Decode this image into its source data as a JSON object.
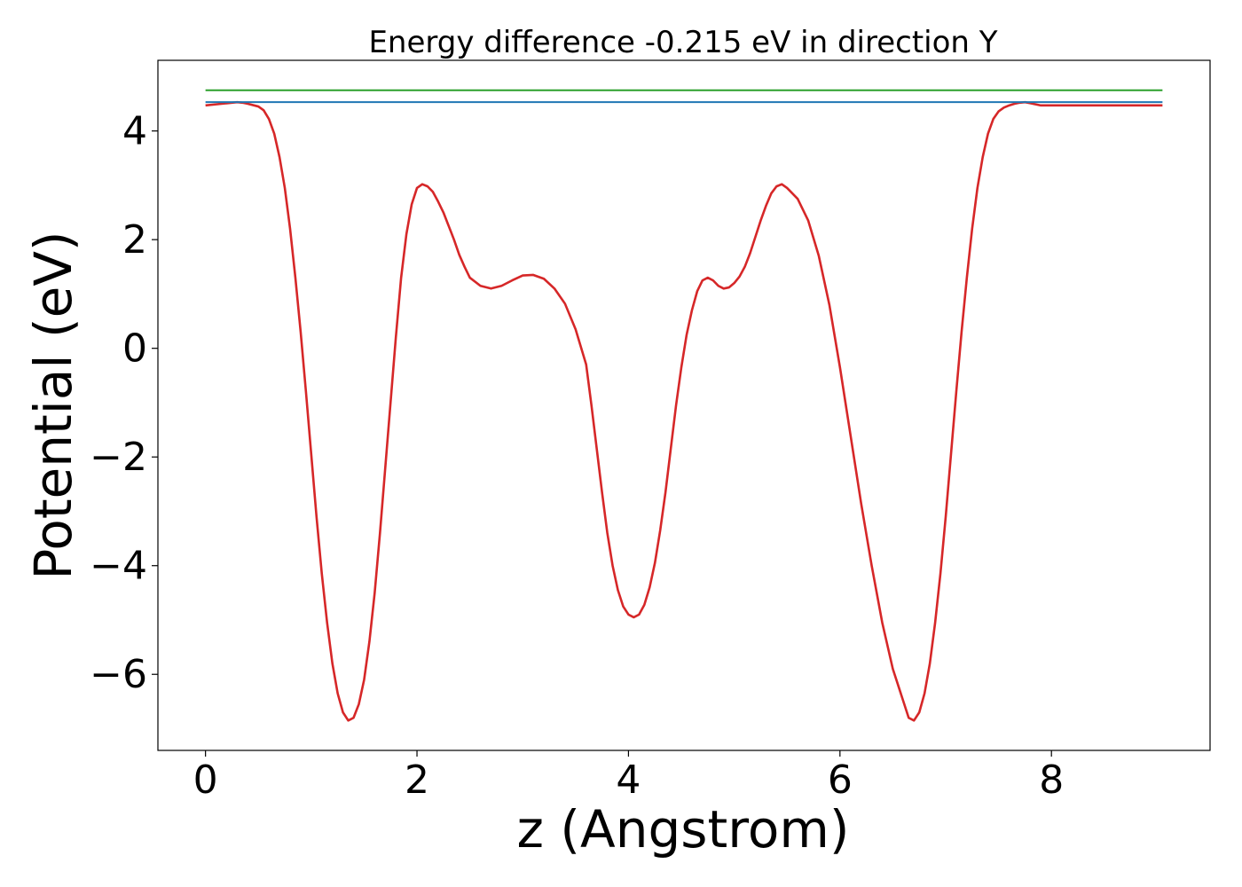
{
  "chart_data": {
    "type": "line",
    "title": "Energy difference -0.215 eV in direction Y",
    "xlabel": "z (Angstrom)",
    "ylabel": "Potential (eV)",
    "xlim": [
      -0.45,
      9.5
    ],
    "ylim": [
      -7.4,
      5.3
    ],
    "xticks": [
      0,
      2,
      4,
      6,
      8
    ],
    "xtick_labels": [
      "0",
      "2",
      "4",
      "6",
      "8"
    ],
    "yticks": [
      -6,
      -4,
      -2,
      0,
      2,
      4
    ],
    "ytick_labels": [
      "−6",
      "−4",
      "−2",
      "0",
      "2",
      "4"
    ],
    "grid": false,
    "legend": "none",
    "series": [
      {
        "color": "#d62728",
        "x": [
          0.0,
          0.1,
          0.2,
          0.3,
          0.35,
          0.4,
          0.5,
          0.55,
          0.6,
          0.65,
          0.7,
          0.75,
          0.8,
          0.85,
          0.9,
          0.95,
          1.0,
          1.05,
          1.1,
          1.15,
          1.2,
          1.25,
          1.3,
          1.35,
          1.4,
          1.45,
          1.5,
          1.55,
          1.6,
          1.65,
          1.7,
          1.75,
          1.8,
          1.85,
          1.9,
          1.95,
          2.0,
          2.05,
          2.1,
          2.15,
          2.2,
          2.25,
          2.3,
          2.35,
          2.4,
          2.45,
          2.5,
          2.6,
          2.7,
          2.8,
          2.9,
          3.0,
          3.1,
          3.2,
          3.3,
          3.4,
          3.5,
          3.6,
          3.65,
          3.7,
          3.75,
          3.8,
          3.85,
          3.9,
          3.95,
          4.0,
          4.05,
          4.1,
          4.15,
          4.2,
          4.25,
          4.3,
          4.35,
          4.4,
          4.45,
          4.5,
          4.55,
          4.6,
          4.65,
          4.7,
          4.75,
          4.8,
          4.85,
          4.9,
          4.95,
          5.0,
          5.05,
          5.1,
          5.15,
          5.2,
          5.25,
          5.3,
          5.35,
          5.4,
          5.45,
          5.5,
          5.6,
          5.7,
          5.8,
          5.9,
          6.0,
          6.1,
          6.2,
          6.3,
          6.4,
          6.5,
          6.6,
          6.65,
          6.7,
          6.75,
          6.8,
          6.85,
          6.9,
          6.95,
          7.0,
          7.05,
          7.1,
          7.15,
          7.2,
          7.25,
          7.3,
          7.35,
          7.4,
          7.45,
          7.5,
          7.55,
          7.6,
          7.65,
          7.7,
          7.75,
          7.8,
          7.85,
          7.9,
          7.95,
          8.0,
          8.05,
          8.1,
          8.15,
          8.2,
          8.25,
          8.3,
          8.35,
          8.4,
          8.45,
          8.5,
          8.6,
          8.7,
          8.75,
          8.8,
          8.9,
          9.0,
          9.05
        ],
        "y": [
          4.47,
          4.49,
          4.51,
          4.53,
          4.52,
          4.5,
          4.45,
          4.38,
          4.22,
          3.95,
          3.52,
          2.95,
          2.2,
          1.3,
          0.3,
          -0.8,
          -1.95,
          -3.1,
          -4.15,
          -5.05,
          -5.8,
          -6.35,
          -6.7,
          -6.85,
          -6.8,
          -6.55,
          -6.1,
          -5.4,
          -4.5,
          -3.4,
          -2.2,
          -1.0,
          0.2,
          1.3,
          2.1,
          2.65,
          2.95,
          3.02,
          2.98,
          2.88,
          2.7,
          2.5,
          2.25,
          2.0,
          1.72,
          1.5,
          1.3,
          1.15,
          1.1,
          1.15,
          1.25,
          1.34,
          1.35,
          1.28,
          1.1,
          0.82,
          0.35,
          -0.3,
          -1.05,
          -1.85,
          -2.65,
          -3.4,
          -4.0,
          -4.45,
          -4.75,
          -4.9,
          -4.95,
          -4.9,
          -4.72,
          -4.4,
          -3.95,
          -3.35,
          -2.65,
          -1.85,
          -1.05,
          -0.35,
          0.25,
          0.7,
          1.05,
          1.25,
          1.3,
          1.25,
          1.15,
          1.1,
          1.12,
          1.2,
          1.32,
          1.5,
          1.75,
          2.05,
          2.35,
          2.62,
          2.85,
          2.98,
          3.02,
          2.95,
          2.75,
          2.35,
          1.7,
          0.8,
          -0.35,
          -1.6,
          -2.85,
          -4.0,
          -5.05,
          -5.9,
          -6.5,
          -6.8,
          -6.85,
          -6.7,
          -6.35,
          -5.8,
          -5.05,
          -4.15,
          -3.1,
          -1.95,
          -0.8,
          0.3,
          1.3,
          2.2,
          2.95,
          3.52,
          3.95,
          4.22,
          4.36,
          4.43,
          4.47,
          4.5,
          4.52,
          4.53,
          4.51,
          4.49,
          4.47,
          4.47,
          4.47,
          4.47,
          4.47,
          4.47,
          4.47,
          4.47,
          4.47,
          4.47,
          4.47,
          4.47,
          4.47,
          4.47,
          4.47,
          4.47,
          4.47,
          4.47,
          4.47,
          4.47
        ]
      },
      {
        "color": "#1f77b4",
        "x": [
          0.0,
          9.05
        ],
        "y": [
          4.53,
          4.53
        ]
      },
      {
        "color": "#2ca02c",
        "x": [
          0.0,
          9.05
        ],
        "y": [
          4.75,
          4.75
        ]
      }
    ]
  }
}
